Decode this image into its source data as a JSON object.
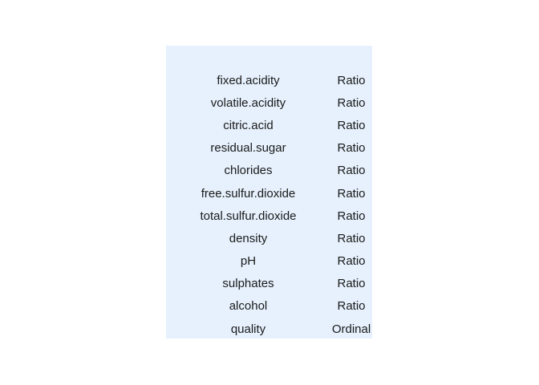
{
  "table": {
    "rows": [
      {
        "name": "fixed.acidity",
        "type": "Ratio"
      },
      {
        "name": "volatile.acidity",
        "type": "Ratio"
      },
      {
        "name": "citric.acid",
        "type": "Ratio"
      },
      {
        "name": "residual.sugar",
        "type": "Ratio"
      },
      {
        "name": "chlorides",
        "type": "Ratio"
      },
      {
        "name": "free.sulfur.dioxide",
        "type": "Ratio"
      },
      {
        "name": "total.sulfur.dioxide",
        "type": "Ratio"
      },
      {
        "name": "density",
        "type": "Ratio"
      },
      {
        "name": "pH",
        "type": "Ratio"
      },
      {
        "name": "sulphates",
        "type": "Ratio"
      },
      {
        "name": "alcohol",
        "type": "Ratio"
      },
      {
        "name": "quality",
        "type": "Ordinal"
      }
    ]
  },
  "colors": {
    "panel_background": "#e6f1fd",
    "text": "#1a1a1a"
  }
}
